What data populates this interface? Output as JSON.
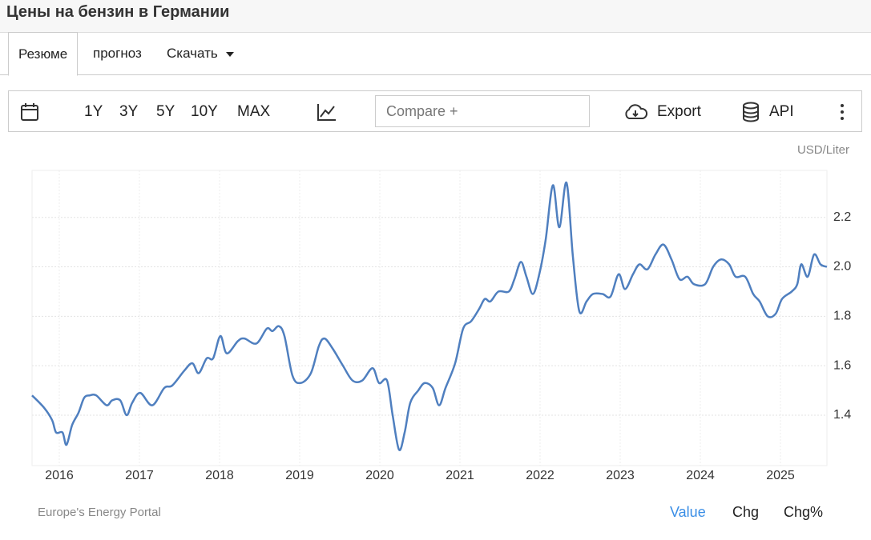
{
  "header": {
    "title": "Цены на бензин в Германии"
  },
  "tabs": [
    "Резюме",
    "прогноз",
    "Скачать"
  ],
  "toolbar": {
    "ranges": [
      "1Y",
      "3Y",
      "5Y",
      "10Y",
      "MAX"
    ],
    "active_range": "10Y",
    "compare_placeholder": "Compare +",
    "export": "Export",
    "api": "API"
  },
  "chart_data": {
    "type": "line",
    "unit": "USD/Liter",
    "source": "Europe's Energy Portal",
    "color": "#4f7fbf",
    "grid": true,
    "x": [
      2015.66,
      2015.81,
      2015.91,
      2015.96,
      2016.04,
      2016.09,
      2016.16,
      2016.24,
      2016.31,
      2016.38,
      2016.46,
      2016.59,
      2016.66,
      2016.76,
      2016.84,
      2016.91,
      2017.01,
      2017.16,
      2017.31,
      2017.41,
      2017.56,
      2017.66,
      2017.74,
      2017.84,
      2017.92,
      2018.01,
      2018.09,
      2018.23,
      2018.31,
      2018.46,
      2018.59,
      2018.66,
      2018.74,
      2018.81,
      2018.91,
      2019.01,
      2019.14,
      2019.24,
      2019.31,
      2019.41,
      2019.54,
      2019.66,
      2019.78,
      2019.91,
      2019.99,
      2020.09,
      2020.16,
      2020.24,
      2020.31,
      2020.38,
      2020.48,
      2020.56,
      2020.66,
      2020.74,
      2020.82,
      2020.94,
      2021.04,
      2021.14,
      2021.24,
      2021.31,
      2021.38,
      2021.48,
      2021.61,
      2021.68,
      2021.76,
      2021.83,
      2021.91,
      2021.99,
      2022.07,
      2022.16,
      2022.24,
      2022.33,
      2022.41,
      2022.49,
      2022.58,
      2022.66,
      2022.78,
      2022.88,
      2022.98,
      2023.06,
      2023.16,
      2023.24,
      2023.34,
      2023.44,
      2023.54,
      2023.64,
      2023.74,
      2023.84,
      2023.92,
      2024.06,
      2024.16,
      2024.26,
      2024.36,
      2024.44,
      2024.56,
      2024.66,
      2024.74,
      2024.84,
      2024.94,
      2025.02,
      2025.14,
      2025.21,
      2025.26,
      2025.34,
      2025.42,
      2025.5,
      2025.58
    ],
    "series": [
      {
        "name": "Value",
        "color": "#4f7fbf",
        "values": [
          1.48,
          1.43,
          1.38,
          1.33,
          1.33,
          1.28,
          1.36,
          1.41,
          1.47,
          1.48,
          1.48,
          1.44,
          1.46,
          1.46,
          1.4,
          1.45,
          1.49,
          1.44,
          1.51,
          1.52,
          1.58,
          1.61,
          1.57,
          1.63,
          1.63,
          1.72,
          1.65,
          1.7,
          1.71,
          1.69,
          1.75,
          1.74,
          1.76,
          1.72,
          1.56,
          1.53,
          1.57,
          1.68,
          1.71,
          1.67,
          1.6,
          1.54,
          1.54,
          1.59,
          1.53,
          1.54,
          1.4,
          1.26,
          1.33,
          1.45,
          1.5,
          1.53,
          1.51,
          1.44,
          1.51,
          1.61,
          1.75,
          1.78,
          1.83,
          1.87,
          1.86,
          1.9,
          1.9,
          1.95,
          2.02,
          1.96,
          1.89,
          1.97,
          2.11,
          2.33,
          2.16,
          2.34,
          2.04,
          1.82,
          1.86,
          1.89,
          1.89,
          1.88,
          1.97,
          1.91,
          1.97,
          2.01,
          1.99,
          2.05,
          2.09,
          2.03,
          1.95,
          1.96,
          1.93,
          1.93,
          2.0,
          2.03,
          2.01,
          1.96,
          1.96,
          1.89,
          1.86,
          1.8,
          1.81,
          1.87,
          1.9,
          1.93,
          2.01,
          1.96,
          2.05,
          2.01,
          2.0
        ]
      }
    ],
    "xlim": [
      2015.66,
      2025.58
    ],
    "xticks": [
      2016,
      2017,
      2018,
      2019,
      2020,
      2021,
      2022,
      2023,
      2024,
      2025
    ],
    "ylim": [
      1.196,
      2.39
    ],
    "yticks": [
      1.4,
      1.6,
      1.8,
      {
        "value": 2,
        "label": "2.0"
      },
      2.2
    ]
  },
  "footer_tabs": [
    "Value",
    "Chg",
    "Chg%"
  ],
  "active_footer_tab": "Value"
}
